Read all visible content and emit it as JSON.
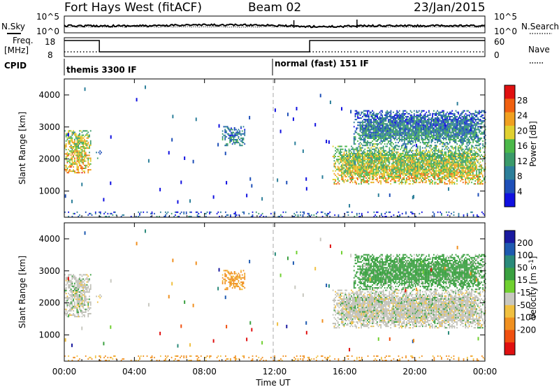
{
  "header": {
    "station": "Fort Hays West (fitACF)",
    "beam": "Beam 02",
    "date": "23/Jan/2015"
  },
  "noise_panel": {
    "left_label": "N.Sky",
    "left_ticks": [
      "10^5",
      "10^0"
    ],
    "right_label": "N.Search",
    "right_ticks": [
      "10^5",
      "10^0"
    ]
  },
  "freq_panel": {
    "left_label_1": "Freq.",
    "left_label_2": "[MHz]",
    "left_ticks": [
      "18",
      "8"
    ],
    "right_label": "Nave",
    "right_ticks": [
      "60",
      "0"
    ],
    "cpid_label": "CPID",
    "freq_steps": [
      {
        "t0": 0,
        "t1": 2,
        "f": 16.5
      },
      {
        "t0": 2,
        "t1": 14,
        "f": 10.5
      },
      {
        "t0": 14,
        "t1": 24,
        "f": 16.5
      }
    ],
    "nave_level": 15
  },
  "cpid": [
    {
      "label": "themis 3300 IF",
      "start_hour": 0
    },
    {
      "label": "normal (fast) 151 IF",
      "start_hour": 12
    }
  ],
  "x_axis": {
    "label": "Time UT",
    "ticks": [
      "00:00",
      "04:00",
      "08:00",
      "12:00",
      "16:00",
      "20:00",
      "00:00"
    ],
    "tick_hours": [
      0,
      4,
      8,
      12,
      16,
      20,
      24
    ]
  },
  "power_panel": {
    "ylabel": "Slant Range [km]",
    "yticks": [
      "4000",
      "3000",
      "2000",
      "1000"
    ],
    "ytick_values": [
      4000,
      3000,
      2000,
      1000
    ],
    "yrange": [
      180,
      4500
    ],
    "colorbar_label": "Power [dB]",
    "colorbar_ticks": [
      "28",
      "24",
      "20",
      "16",
      "12",
      "8",
      "4"
    ],
    "colorbar_tick_values": [
      28,
      24,
      20,
      16,
      12,
      8,
      4
    ],
    "range": [
      0,
      32
    ]
  },
  "velocity_panel": {
    "ylabel": "Slant Range [km]",
    "yticks": [
      "4000",
      "3000",
      "2000",
      "1000"
    ],
    "ytick_values": [
      4000,
      3000,
      2000,
      1000
    ],
    "yrange": [
      180,
      4500
    ],
    "colorbar_label": "Velocity [m s",
    "colorbar_label_sup": "-1",
    "colorbar_label_end": "]",
    "colorbar_ticks": [
      "200",
      "100",
      "50",
      "15",
      "-15",
      "-50",
      "-100",
      "-200"
    ]
  },
  "colors": {
    "power_scale": [
      "#1010e0",
      "#1e4fb8",
      "#2c7f9a",
      "#3a9a6a",
      "#4cb84a",
      "#e0d030",
      "#f0a020",
      "#f06010",
      "#e01010"
    ],
    "velocity_scale": [
      "#1a1aa0",
      "#1e5ab0",
      "#2a8a7a",
      "#3aa040",
      "#70d030",
      "#c8c8c0",
      "#f0c040",
      "#f09020",
      "#f05010",
      "#e01010"
    ],
    "gray": "#c0c0b8"
  },
  "chart_data": {
    "type": "heatmap",
    "x_unit": "hours UT",
    "y_unit": "km",
    "regions": [
      {
        "t0": 0.0,
        "t1": 1.5,
        "r0": 1550,
        "r1": 2900,
        "power": 20,
        "velocity": 0
      },
      {
        "t0": 1.8,
        "t1": 2.1,
        "r0": 2000,
        "r1": 2250,
        "power": 8,
        "velocity": -15
      },
      {
        "t0": 9.0,
        "t1": 10.3,
        "r0": 2400,
        "r1": 3000,
        "power": 8,
        "velocity": -60
      },
      {
        "t0": 15.3,
        "t1": 24.0,
        "r0": 1200,
        "r1": 2400,
        "power": 18,
        "velocity": 0
      },
      {
        "t0": 16.5,
        "t1": 24.0,
        "r0": 2400,
        "r1": 3500,
        "power": 8,
        "velocity": 30
      },
      {
        "t0": 0.0,
        "t1": 24.0,
        "r0": 180,
        "r1": 350,
        "power": 4,
        "velocity": -60
      }
    ]
  }
}
